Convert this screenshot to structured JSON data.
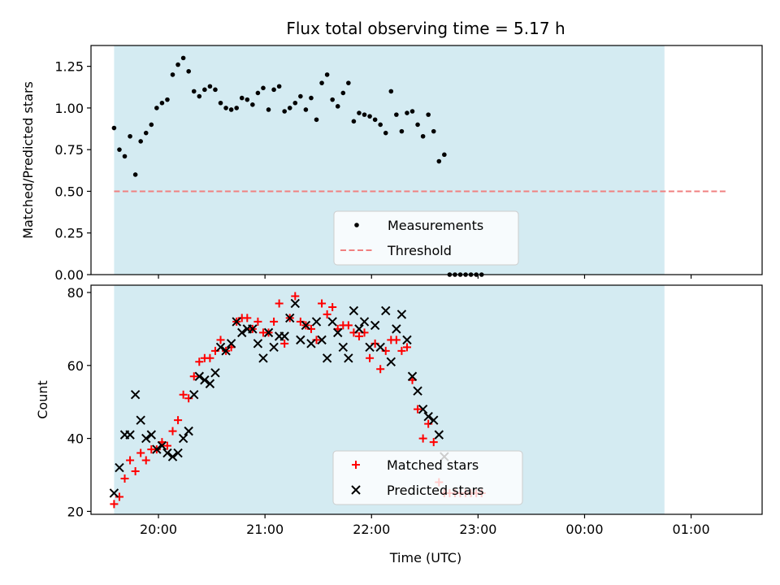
{
  "figure": {
    "title": "Flux total observing time = 5.17 h",
    "xlabel": "Time (UTC)",
    "x_ticks": [
      "20:00",
      "21:00",
      "22:00",
      "23:00",
      "00:00",
      "01:00"
    ]
  },
  "colors": {
    "shade": "#add8e6",
    "threshold": "#f08080",
    "matched": "#ff0000",
    "predicted": "#000000",
    "measurements": "#000000"
  },
  "chart_data": [
    {
      "type": "scatter",
      "ylabel": "Matched/Predicted stars",
      "xlim": [
        "19:22",
        "01:40"
      ],
      "ylim": [
        0,
        1.375
      ],
      "y_ticks": [
        "0.00",
        "0.25",
        "0.50",
        "0.75",
        "1.00",
        "1.25"
      ],
      "shaded_interval": [
        "19:35",
        "00:45"
      ],
      "threshold": {
        "name": "Threshold",
        "y": 0.5,
        "x_range": [
          "19:35",
          "01:20"
        ]
      },
      "legend": {
        "placement": "lower center",
        "entries": [
          "Measurements",
          "Threshold"
        ]
      },
      "series": [
        {
          "name": "Measurements",
          "points": [
            [
              "19:35",
              0.88
            ],
            [
              "19:38",
              0.75
            ],
            [
              "19:41",
              0.71
            ],
            [
              "19:44",
              0.83
            ],
            [
              "19:47",
              0.6
            ],
            [
              "19:50",
              0.8
            ],
            [
              "19:53",
              0.85
            ],
            [
              "19:56",
              0.9
            ],
            [
              "19:59",
              1.0
            ],
            [
              "20:02",
              1.03
            ],
            [
              "20:05",
              1.05
            ],
            [
              "20:08",
              1.2
            ],
            [
              "20:11",
              1.26
            ],
            [
              "20:14",
              1.3
            ],
            [
              "20:17",
              1.22
            ],
            [
              "20:20",
              1.1
            ],
            [
              "20:23",
              1.07
            ],
            [
              "20:26",
              1.11
            ],
            [
              "20:29",
              1.13
            ],
            [
              "20:32",
              1.11
            ],
            [
              "20:35",
              1.03
            ],
            [
              "20:38",
              1.0
            ],
            [
              "20:41",
              0.99
            ],
            [
              "20:44",
              1.0
            ],
            [
              "20:47",
              1.06
            ],
            [
              "20:50",
              1.05
            ],
            [
              "20:53",
              1.02
            ],
            [
              "20:56",
              1.09
            ],
            [
              "20:59",
              1.12
            ],
            [
              "21:02",
              0.99
            ],
            [
              "21:05",
              1.11
            ],
            [
              "21:08",
              1.13
            ],
            [
              "21:11",
              0.98
            ],
            [
              "21:14",
              1.0
            ],
            [
              "21:17",
              1.03
            ],
            [
              "21:20",
              1.07
            ],
            [
              "21:23",
              0.99
            ],
            [
              "21:26",
              1.06
            ],
            [
              "21:29",
              0.93
            ],
            [
              "21:32",
              1.15
            ],
            [
              "21:35",
              1.2
            ],
            [
              "21:38",
              1.05
            ],
            [
              "21:41",
              1.01
            ],
            [
              "21:44",
              1.09
            ],
            [
              "21:47",
              1.15
            ],
            [
              "21:50",
              0.92
            ],
            [
              "21:53",
              0.97
            ],
            [
              "21:56",
              0.96
            ],
            [
              "21:59",
              0.95
            ],
            [
              "22:02",
              0.93
            ],
            [
              "22:05",
              0.9
            ],
            [
              "22:08",
              0.85
            ],
            [
              "22:11",
              1.1
            ],
            [
              "22:14",
              0.96
            ],
            [
              "22:17",
              0.86
            ],
            [
              "22:20",
              0.97
            ],
            [
              "22:23",
              0.98
            ],
            [
              "22:26",
              0.9
            ],
            [
              "22:29",
              0.83
            ],
            [
              "22:32",
              0.96
            ],
            [
              "22:35",
              0.86
            ],
            [
              "22:38",
              0.68
            ],
            [
              "22:41",
              0.72
            ],
            [
              "22:44",
              0.0
            ],
            [
              "22:47",
              0.0
            ],
            [
              "22:50",
              0.0
            ],
            [
              "22:53",
              0.0
            ],
            [
              "22:56",
              0.0
            ],
            [
              "22:59",
              0.0
            ],
            [
              "23:02",
              0.0
            ]
          ]
        }
      ]
    },
    {
      "type": "scatter",
      "ylabel": "Count",
      "xlim": [
        "19:22",
        "01:40"
      ],
      "ylim": [
        19.2,
        82
      ],
      "y_ticks": [
        "20",
        "40",
        "60",
        "80"
      ],
      "shaded_interval": [
        "19:35",
        "00:45"
      ],
      "legend": {
        "placement": "lower center",
        "entries": [
          "Matched stars",
          "Predicted stars"
        ]
      },
      "series": [
        {
          "name": "Matched stars",
          "marker": "plus",
          "points": [
            [
              "19:35",
              22
            ],
            [
              "19:38",
              24
            ],
            [
              "19:41",
              29
            ],
            [
              "19:44",
              34
            ],
            [
              "19:47",
              31
            ],
            [
              "19:50",
              36
            ],
            [
              "19:53",
              34
            ],
            [
              "19:56",
              37
            ],
            [
              "19:59",
              37
            ],
            [
              "20:02",
              39
            ],
            [
              "20:05",
              38
            ],
            [
              "20:08",
              42
            ],
            [
              "20:11",
              45
            ],
            [
              "20:14",
              52
            ],
            [
              "20:17",
              51
            ],
            [
              "20:20",
              57
            ],
            [
              "20:23",
              61
            ],
            [
              "20:26",
              62
            ],
            [
              "20:29",
              62
            ],
            [
              "20:32",
              64
            ],
            [
              "20:35",
              67
            ],
            [
              "20:38",
              64
            ],
            [
              "20:41",
              65
            ],
            [
              "20:44",
              72
            ],
            [
              "20:47",
              73
            ],
            [
              "20:50",
              73
            ],
            [
              "20:53",
              70
            ],
            [
              "20:56",
              72
            ],
            [
              "20:59",
              69
            ],
            [
              "21:02",
              69
            ],
            [
              "21:05",
              72
            ],
            [
              "21:08",
              77
            ],
            [
              "21:11",
              66
            ],
            [
              "21:14",
              73
            ],
            [
              "21:17",
              79
            ],
            [
              "21:20",
              72
            ],
            [
              "21:23",
              71
            ],
            [
              "21:26",
              70
            ],
            [
              "21:29",
              67
            ],
            [
              "21:32",
              77
            ],
            [
              "21:35",
              74
            ],
            [
              "21:38",
              76
            ],
            [
              "21:41",
              70
            ],
            [
              "21:44",
              71
            ],
            [
              "21:47",
              71
            ],
            [
              "21:50",
              69
            ],
            [
              "21:53",
              68
            ],
            [
              "21:56",
              69
            ],
            [
              "21:59",
              62
            ],
            [
              "22:02",
              66
            ],
            [
              "22:05",
              59
            ],
            [
              "22:08",
              64
            ],
            [
              "22:11",
              67
            ],
            [
              "22:14",
              67
            ],
            [
              "22:17",
              64
            ],
            [
              "22:20",
              65
            ],
            [
              "22:23",
              56
            ],
            [
              "22:26",
              48
            ],
            [
              "22:29",
              40
            ],
            [
              "22:32",
              44
            ],
            [
              "22:35",
              39
            ],
            [
              "22:38",
              28
            ],
            [
              "22:41",
              25
            ],
            [
              "22:44",
              25
            ],
            [
              "22:47",
              25
            ],
            [
              "22:50",
              25
            ],
            [
              "22:53",
              25
            ],
            [
              "22:56",
              25
            ],
            [
              "22:59",
              25
            ],
            [
              "23:02",
              25
            ]
          ]
        },
        {
          "name": "Predicted stars",
          "marker": "x",
          "points": [
            [
              "19:35",
              25
            ],
            [
              "19:38",
              32
            ],
            [
              "19:41",
              41
            ],
            [
              "19:44",
              41
            ],
            [
              "19:47",
              52
            ],
            [
              "19:50",
              45
            ],
            [
              "19:53",
              40
            ],
            [
              "19:56",
              41
            ],
            [
              "19:59",
              37
            ],
            [
              "20:02",
              38
            ],
            [
              "20:05",
              36
            ],
            [
              "20:08",
              35
            ],
            [
              "20:11",
              36
            ],
            [
              "20:14",
              40
            ],
            [
              "20:17",
              42
            ],
            [
              "20:20",
              52
            ],
            [
              "20:23",
              57
            ],
            [
              "20:26",
              56
            ],
            [
              "20:29",
              55
            ],
            [
              "20:32",
              58
            ],
            [
              "20:35",
              65
            ],
            [
              "20:38",
              64
            ],
            [
              "20:41",
              66
            ],
            [
              "20:44",
              72
            ],
            [
              "20:47",
              69
            ],
            [
              "20:50",
              70
            ],
            [
              "20:53",
              70
            ],
            [
              "20:56",
              66
            ],
            [
              "20:59",
              62
            ],
            [
              "21:02",
              69
            ],
            [
              "21:05",
              65
            ],
            [
              "21:08",
              68
            ],
            [
              "21:11",
              68
            ],
            [
              "21:14",
              73
            ],
            [
              "21:17",
              77
            ],
            [
              "21:20",
              67
            ],
            [
              "21:23",
              71
            ],
            [
              "21:26",
              66
            ],
            [
              "21:29",
              72
            ],
            [
              "21:32",
              67
            ],
            [
              "21:35",
              62
            ],
            [
              "21:38",
              72
            ],
            [
              "21:41",
              69
            ],
            [
              "21:44",
              65
            ],
            [
              "21:47",
              62
            ],
            [
              "21:50",
              75
            ],
            [
              "21:53",
              70
            ],
            [
              "21:56",
              72
            ],
            [
              "21:59",
              65
            ],
            [
              "22:02",
              71
            ],
            [
              "22:05",
              65
            ],
            [
              "22:08",
              75
            ],
            [
              "22:11",
              61
            ],
            [
              "22:14",
              70
            ],
            [
              "22:17",
              74
            ],
            [
              "22:20",
              67
            ],
            [
              "22:23",
              57
            ],
            [
              "22:26",
              53
            ],
            [
              "22:29",
              48
            ],
            [
              "22:32",
              46
            ],
            [
              "22:35",
              45
            ],
            [
              "22:38",
              41
            ],
            [
              "22:41",
              35
            ]
          ]
        }
      ]
    }
  ]
}
